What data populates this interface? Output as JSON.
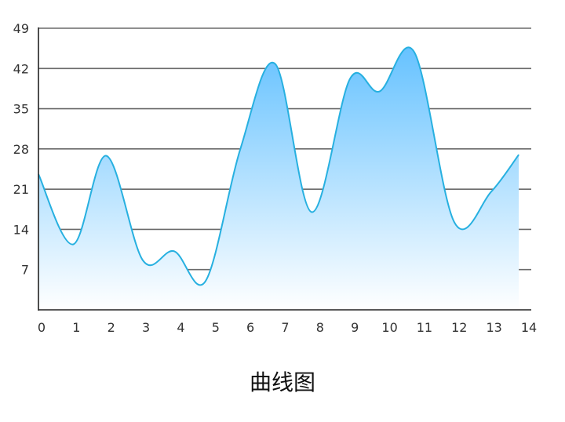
{
  "chart_data": {
    "type": "area",
    "caption": "曲线图",
    "x": [
      0,
      1,
      2,
      3,
      4,
      5,
      6,
      7,
      8,
      9,
      10,
      11,
      12,
      13,
      14
    ],
    "xlim": [
      0,
      14
    ],
    "xticks": [
      "0",
      "1",
      "2",
      "3",
      "4",
      "5",
      "6",
      "7",
      "8",
      "9",
      "10",
      "11",
      "12",
      "13",
      "14"
    ],
    "ylim": [
      0,
      49
    ],
    "yticks": [
      "7",
      "14",
      "21",
      "28",
      "35",
      "42",
      "49"
    ],
    "series": [
      {
        "points": [
          [
            0,
            23.6
          ],
          [
            1,
            11.4
          ],
          [
            1.95,
            26.8
          ],
          [
            3,
            8.6
          ],
          [
            3.9,
            10.2
          ],
          [
            4.8,
            5.0
          ],
          [
            5.8,
            28.0
          ],
          [
            6.8,
            42.8
          ],
          [
            7.85,
            17.0
          ],
          [
            8.95,
            40.2
          ],
          [
            9.8,
            38.0
          ],
          [
            10.8,
            44.8
          ],
          [
            11.95,
            15.2
          ],
          [
            13,
            20.5
          ],
          [
            13.8,
            27.0
          ]
        ]
      }
    ],
    "grid": true,
    "colors": {
      "line": "#27b0e0",
      "fill_top": "#66c2ff",
      "fill_bottom": "#ffffff",
      "grid": "#6a6a6a",
      "axis": "#222222"
    }
  }
}
